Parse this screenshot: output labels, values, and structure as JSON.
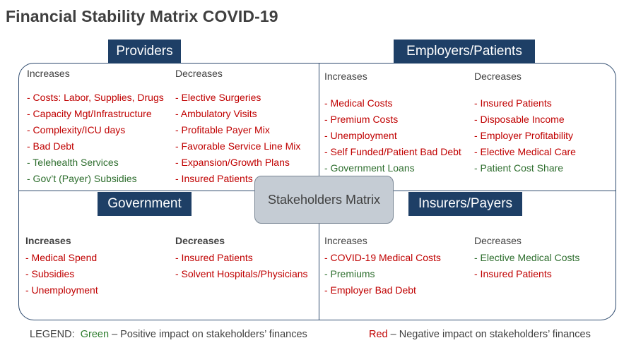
{
  "title": "Financial Stability Matrix COVID-19",
  "center_label": "Stakeholders Matrix",
  "colors": {
    "header_bg": "#1e3f66",
    "negative": "#c00000",
    "positive": "#2e6e2e",
    "border": "#2e4a6e"
  },
  "quadrants": {
    "providers": {
      "label": "Providers",
      "increases": {
        "heading": "Increases",
        "items": [
          {
            "text": "- Costs: Labor, Supplies, Drugs",
            "impact": "negative"
          },
          {
            "text": "- Capacity Mgt/Infrastructure",
            "impact": "negative"
          },
          {
            "text": "- Complexity/ICU days",
            "impact": "negative"
          },
          {
            "text": "- Bad Debt",
            "impact": "negative"
          },
          {
            "text": "- Telehealth Services",
            "impact": "positive"
          },
          {
            "text": "- Gov’t (Payer) Subsidies",
            "impact": "positive"
          }
        ]
      },
      "decreases": {
        "heading": "Decreases",
        "items": [
          {
            "text": "- Elective Surgeries",
            "impact": "negative"
          },
          {
            "text": "- Ambulatory Visits",
            "impact": "negative"
          },
          {
            "text": "- Profitable Payer Mix",
            "impact": "negative"
          },
          {
            "text": "- Favorable Service Line Mix",
            "impact": "negative"
          },
          {
            "text": "- Expansion/Growth Plans",
            "impact": "negative"
          },
          {
            "text": "- Insured Patients",
            "impact": "negative"
          }
        ]
      }
    },
    "employers": {
      "label": "Employers/Patients",
      "increases": {
        "heading": "Increases",
        "items": [
          {
            "text": "- Medical Costs",
            "impact": "negative"
          },
          {
            "text": "- Premium Costs",
            "impact": "negative"
          },
          {
            "text": "- Unemployment",
            "impact": "negative"
          },
          {
            "text": "- Self Funded/Patient Bad Debt",
            "impact": "negative"
          },
          {
            "text": "- Government Loans",
            "impact": "positive"
          }
        ]
      },
      "decreases": {
        "heading": "Decreases",
        "items": [
          {
            "text": "- Insured Patients",
            "impact": "negative"
          },
          {
            "text": "- Disposable Income",
            "impact": "negative"
          },
          {
            "text": "- Employer Profitability",
            "impact": "negative"
          },
          {
            "text": "- Elective Medical Care",
            "impact": "negative"
          },
          {
            "text": "- Patient Cost Share",
            "impact": "positive"
          }
        ]
      }
    },
    "government": {
      "label": "Government",
      "increases": {
        "heading": "Increases",
        "items": [
          {
            "text": "- Medical Spend",
            "impact": "negative"
          },
          {
            "text": "- Subsidies",
            "impact": "negative"
          },
          {
            "text": "- Unemployment",
            "impact": "negative"
          }
        ]
      },
      "decreases": {
        "heading": "Decreases",
        "items": [
          {
            "text": "- Insured Patients",
            "impact": "negative"
          },
          {
            "text": "- Solvent Hospitals/Physicians",
            "impact": "negative"
          }
        ]
      }
    },
    "insurers": {
      "label": "Insurers/Payers",
      "increases": {
        "heading": "Increases",
        "items": [
          {
            "text": "- COVID-19 Medical Costs",
            "impact": "negative"
          },
          {
            "text": "- Premiums",
            "impact": "positive"
          },
          {
            "text": "- Employer Bad Debt",
            "impact": "negative"
          }
        ]
      },
      "decreases": {
        "heading": "Decreases",
        "items": [
          {
            "text": "- Elective Medical Costs",
            "impact": "positive"
          },
          {
            "text": "- Insured Patients",
            "impact": "negative"
          }
        ]
      }
    }
  },
  "legend": {
    "prefix": "LEGEND:",
    "green_word": "Green",
    "green_desc": " – Positive impact on stakeholders’ finances",
    "red_word": "Red",
    "red_desc": " – Negative impact on stakeholders’ finances"
  }
}
